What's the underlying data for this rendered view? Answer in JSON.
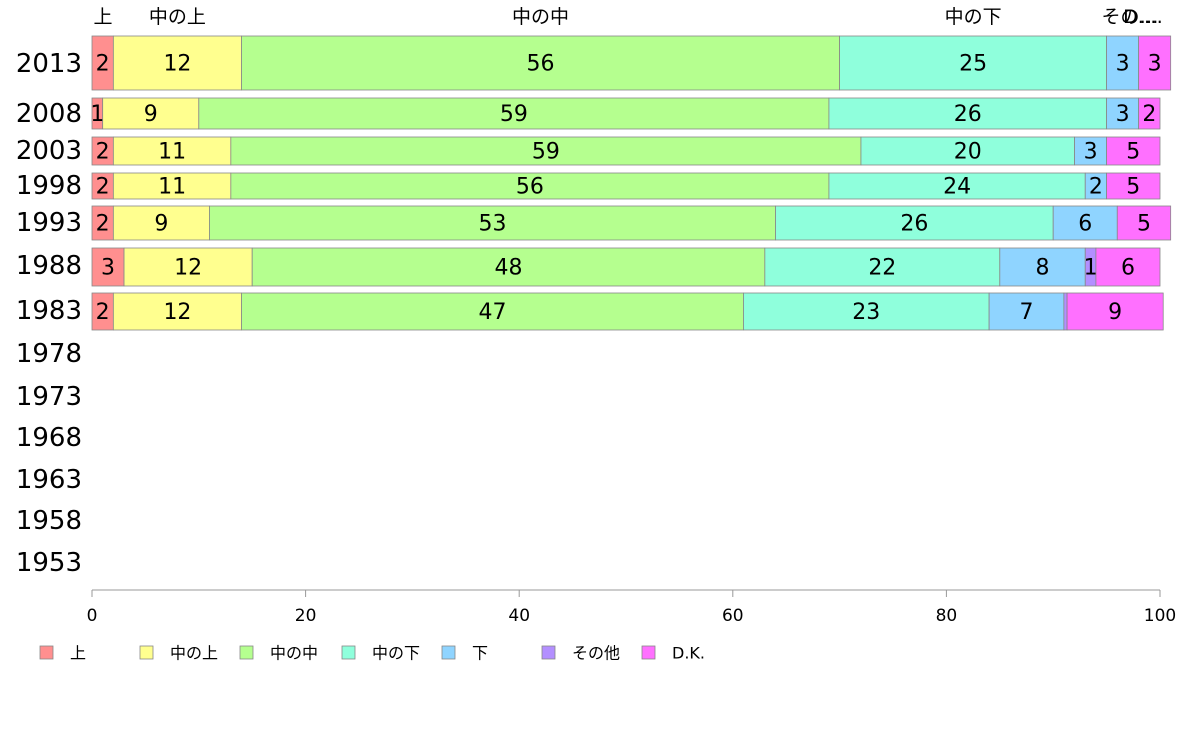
{
  "chart_data": {
    "type": "bar",
    "orientation": "horizontal",
    "stacked": true,
    "categories": [
      "2013",
      "2008",
      "2003",
      "1998",
      "1993",
      "1988",
      "1983",
      "1978",
      "1973",
      "1968",
      "1963",
      "1958",
      "1953"
    ],
    "series": [
      {
        "name": "上",
        "color": "#FF8F8F",
        "values": [
          2,
          1,
          2,
          2,
          2,
          3,
          2,
          null,
          null,
          null,
          null,
          null,
          null
        ]
      },
      {
        "name": "中の上",
        "color": "#FFFF8F",
        "values": [
          12,
          9,
          11,
          11,
          9,
          12,
          12,
          null,
          null,
          null,
          null,
          null,
          null
        ]
      },
      {
        "name": "中の中",
        "color": "#B5FF8F",
        "values": [
          56,
          59,
          59,
          56,
          53,
          48,
          47,
          null,
          null,
          null,
          null,
          null,
          null
        ]
      },
      {
        "name": "中の下",
        "color": "#8FFFDC",
        "values": [
          25,
          26,
          20,
          24,
          26,
          22,
          23,
          null,
          null,
          null,
          null,
          null,
          null
        ]
      },
      {
        "name": "下",
        "color": "#8FD4FF",
        "values": [
          3,
          3,
          3,
          2,
          6,
          8,
          7,
          null,
          null,
          null,
          null,
          null,
          null
        ]
      },
      {
        "name": "その他",
        "color": "#B38FFF",
        "values": [
          0,
          0,
          0,
          0,
          0,
          1,
          0.3,
          null,
          null,
          null,
          null,
          null,
          null
        ]
      },
      {
        "name": "D.K.",
        "color": "#FF70FF",
        "values": [
          3,
          2,
          5,
          5,
          5,
          6,
          9,
          null,
          null,
          null,
          null,
          null,
          null
        ]
      }
    ],
    "top_labels": [
      "上",
      "中の上",
      "中の中",
      "中の下",
      "下",
      "その…",
      "D.…"
    ],
    "xlim": [
      0,
      100
    ],
    "xticks": [
      0,
      20,
      40,
      60,
      80,
      100
    ],
    "legend_position": "bottom",
    "grid": false
  }
}
